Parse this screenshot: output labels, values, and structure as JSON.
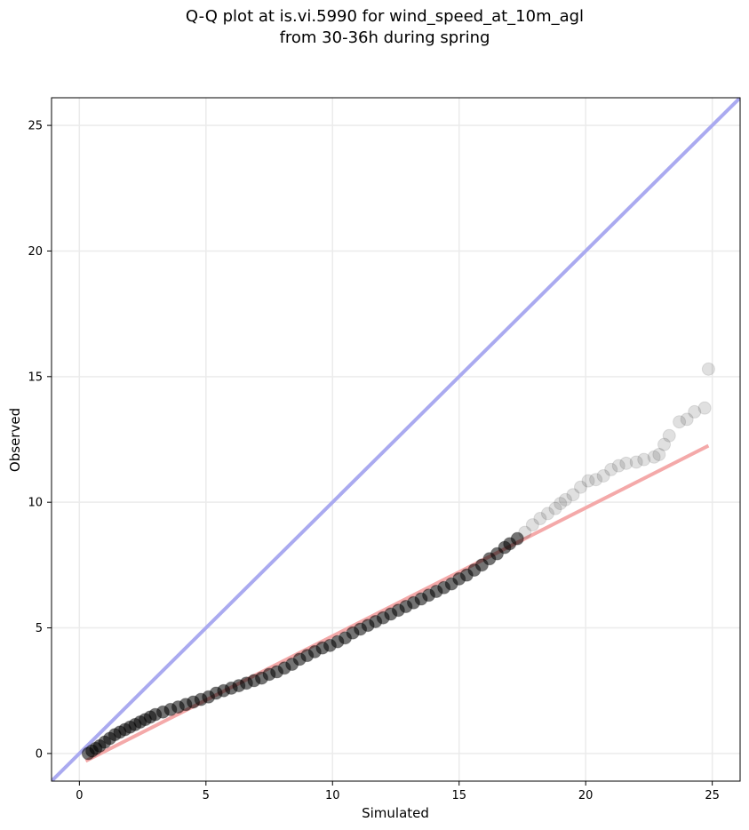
{
  "chart_data": {
    "type": "scatter",
    "title": {
      "line1": "Q-Q plot at is.vi.5990 for wind_speed_at_10m_agl",
      "line2": "from 30-36h during spring"
    },
    "xlabel": "Simulated",
    "ylabel": "Observed",
    "xlim": [
      -1.1,
      26.1
    ],
    "ylim": [
      -1.1,
      26.1
    ],
    "x_ticks": [
      0,
      5,
      10,
      15,
      20,
      25
    ],
    "y_ticks": [
      0,
      5,
      10,
      15,
      20,
      25
    ],
    "grid": true,
    "legend": "none",
    "colors": {
      "points": "#000000",
      "reference_line": "#aaaaf0",
      "fit_line": "#f4a9a9",
      "grid": "#ebebeb"
    },
    "reference_line": {
      "description": "y = x",
      "x": [
        -1.1,
        26.1
      ],
      "y": [
        -1.1,
        26.1
      ]
    },
    "fit_line": {
      "x": [
        0.25,
        24.85
      ],
      "y": [
        -0.3,
        12.25
      ]
    },
    "series": [
      {
        "x": [
          0.35,
          0.5,
          0.65,
          0.8,
          1.0,
          1.2,
          1.4,
          1.6,
          1.8,
          2.0,
          2.2,
          2.4,
          2.6,
          2.8,
          3.0,
          3.3,
          3.6,
          3.9,
          4.2,
          4.5,
          4.8,
          5.1,
          5.4,
          5.7,
          6.0,
          6.3,
          6.6,
          6.9,
          7.2,
          7.5,
          7.8,
          8.1,
          8.4,
          8.7,
          9.0,
          9.3,
          9.6,
          9.9,
          10.2,
          10.5,
          10.8,
          11.1,
          11.4,
          11.7,
          12.0,
          12.3,
          12.6,
          12.9,
          13.2,
          13.5,
          13.8,
          14.1,
          14.4,
          14.7,
          15.0,
          15.3,
          15.6,
          15.9,
          16.2,
          16.5,
          16.8,
          17.0,
          17.3,
          17.6,
          17.9,
          18.2,
          18.5,
          18.8,
          19.0,
          19.2,
          19.5,
          19.8,
          20.1,
          20.4,
          20.7,
          21.0,
          21.3,
          21.6,
          22.0,
          22.3,
          22.7,
          22.9,
          23.1,
          23.3,
          23.7,
          24.0,
          24.3,
          24.7,
          24.85
        ],
        "y": [
          0.0,
          0.1,
          0.2,
          0.3,
          0.45,
          0.6,
          0.75,
          0.85,
          0.95,
          1.05,
          1.15,
          1.25,
          1.35,
          1.45,
          1.55,
          1.65,
          1.75,
          1.85,
          1.95,
          2.05,
          2.15,
          2.25,
          2.4,
          2.5,
          2.6,
          2.7,
          2.8,
          2.9,
          3.0,
          3.15,
          3.25,
          3.4,
          3.55,
          3.75,
          3.9,
          4.05,
          4.2,
          4.3,
          4.45,
          4.6,
          4.8,
          4.95,
          5.1,
          5.25,
          5.4,
          5.55,
          5.7,
          5.85,
          6.0,
          6.15,
          6.3,
          6.45,
          6.6,
          6.75,
          6.95,
          7.1,
          7.3,
          7.5,
          7.75,
          7.95,
          8.2,
          8.35,
          8.55,
          8.8,
          9.1,
          9.35,
          9.55,
          9.75,
          9.95,
          10.1,
          10.3,
          10.6,
          10.85,
          10.9,
          11.05,
          11.3,
          11.45,
          11.55,
          11.6,
          11.7,
          11.8,
          11.9,
          12.3,
          12.65,
          13.2,
          13.3,
          13.6,
          13.75,
          15.3
        ]
      }
    ]
  }
}
